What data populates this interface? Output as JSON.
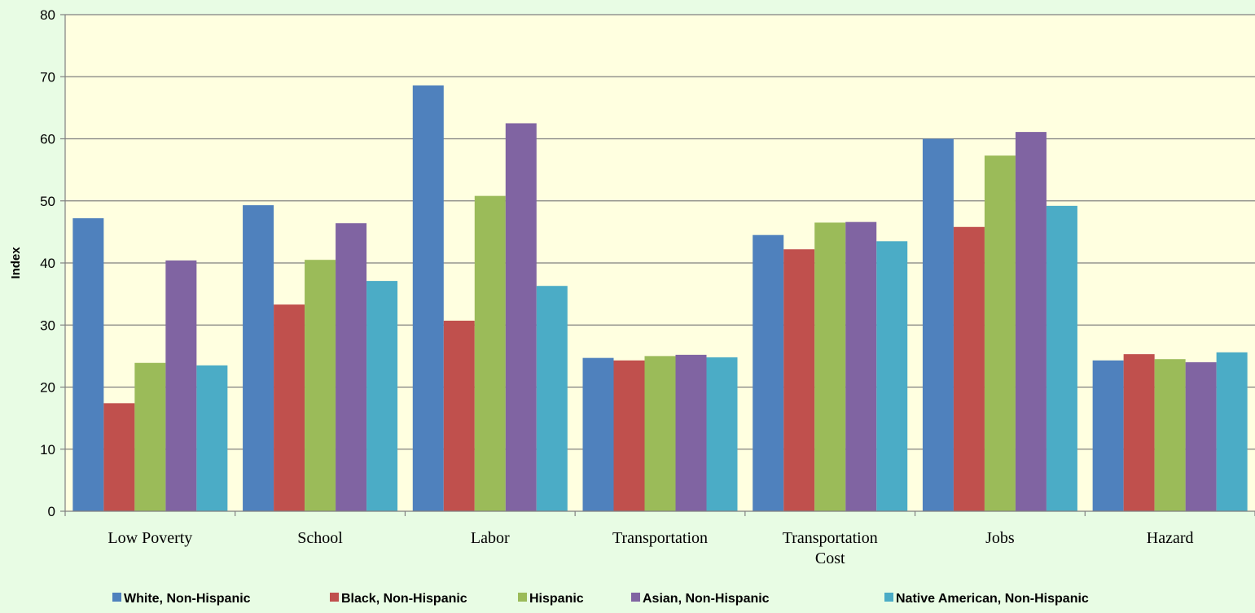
{
  "chart_data": {
    "type": "bar",
    "title": "",
    "xlabel": "",
    "ylabel": "Index",
    "ylim": [
      0,
      80
    ],
    "yticks": [
      0,
      10,
      20,
      30,
      40,
      50,
      60,
      70,
      80
    ],
    "grid": true,
    "legend_position": "bottom",
    "categories": [
      [
        "Low Poverty"
      ],
      [
        "School"
      ],
      [
        "Labor"
      ],
      [
        "Transportation"
      ],
      [
        "Transportation",
        "Cost"
      ],
      [
        "Jobs"
      ],
      [
        "Hazard"
      ]
    ],
    "series": [
      {
        "name": "White, Non-Hispanic",
        "color": "#4f81bd",
        "values": [
          47.2,
          49.3,
          68.6,
          24.7,
          44.5,
          60.0,
          24.3
        ]
      },
      {
        "name": "Black, Non-Hispanic",
        "color": "#c0504d",
        "values": [
          17.4,
          33.3,
          30.7,
          24.3,
          42.2,
          45.8,
          25.3
        ]
      },
      {
        "name": "Hispanic",
        "color": "#9bbb59",
        "values": [
          23.9,
          40.5,
          50.8,
          25.0,
          46.5,
          57.3,
          24.5
        ]
      },
      {
        "name": "Asian, Non-Hispanic",
        "color": "#8064a2",
        "values": [
          40.4,
          46.4,
          62.5,
          25.2,
          46.6,
          61.1,
          24.0
        ]
      },
      {
        "name": "Native American, Non-Hispanic",
        "color": "#4bacc6",
        "values": [
          23.5,
          37.1,
          36.3,
          24.8,
          43.5,
          49.2,
          25.6
        ]
      }
    ],
    "colors": {
      "plot_background": "#ffffe0",
      "page_background": "#e8fce4",
      "gridline": "#808080"
    }
  }
}
